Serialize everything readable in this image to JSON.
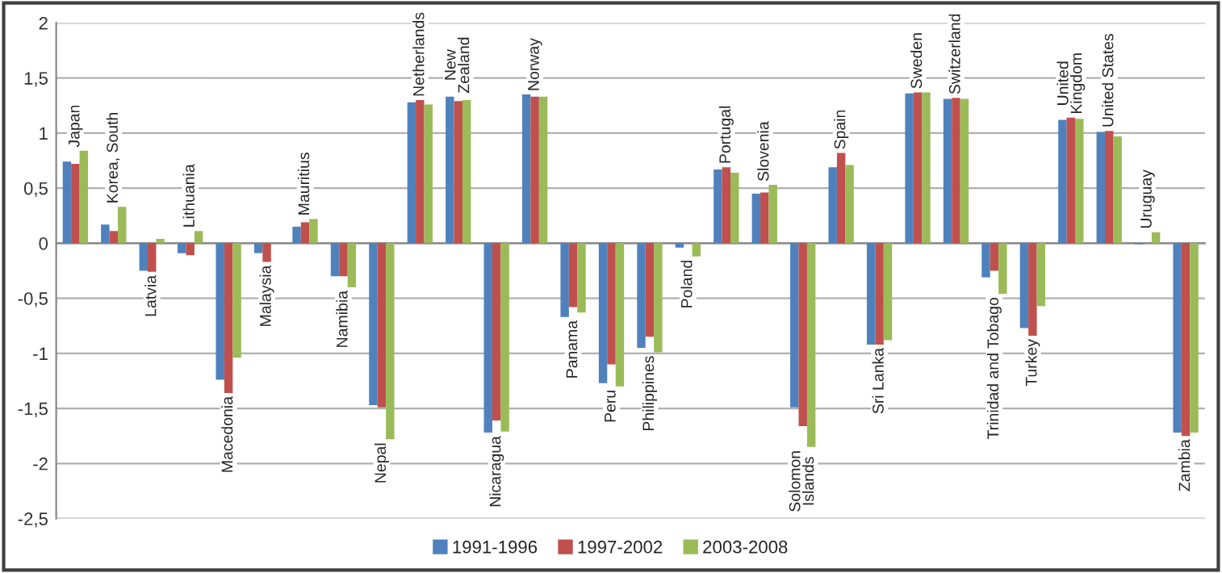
{
  "chart_data": {
    "type": "bar",
    "categories": [
      "Japan",
      "Korea, South",
      "Latvia",
      "Lithuania",
      "Macedonia",
      "Malaysia",
      "Mauritius",
      "Namibia",
      "Nepal",
      "Netherlands",
      "New\nZealand",
      "Nicaragua",
      "Norway",
      "Panama",
      "Peru",
      "Philippines",
      "Poland",
      "Portugal",
      "Slovenia",
      "Solomon\nIslands",
      "Spain",
      "Sri Lanka",
      "Sweden",
      "Switzerland",
      "Trinidad and Tobago",
      "Turkey",
      "United\nKingdom",
      "United States",
      "Uruguay",
      "Zambia"
    ],
    "series": [
      {
        "name": "1991-1996",
        "color": "#4f81bd",
        "values": [
          0.74,
          0.17,
          -0.25,
          -0.09,
          -1.24,
          -0.09,
          0.15,
          -0.3,
          -1.47,
          1.28,
          1.33,
          -1.72,
          1.35,
          -0.67,
          -1.27,
          -0.95,
          -0.04,
          0.67,
          0.45,
          -1.49,
          0.69,
          -0.92,
          1.36,
          1.31,
          -0.31,
          -0.77,
          1.12,
          1.01,
          -0.01,
          -1.72
        ]
      },
      {
        "name": "1997-2002",
        "color": "#c0504d",
        "values": [
          0.72,
          0.11,
          -0.26,
          -0.11,
          -1.36,
          -0.17,
          0.19,
          -0.3,
          -1.49,
          1.3,
          1.29,
          -1.61,
          1.33,
          -0.58,
          -1.1,
          -0.85,
          null,
          0.69,
          0.46,
          -1.66,
          0.82,
          -0.92,
          1.37,
          1.32,
          -0.25,
          -0.84,
          1.14,
          1.02,
          null,
          -1.75
        ]
      },
      {
        "name": "2003-2008",
        "color": "#9bbb59",
        "values": [
          0.84,
          0.33,
          0.04,
          0.11,
          -1.04,
          null,
          0.22,
          -0.4,
          -1.78,
          1.26,
          1.3,
          -1.71,
          1.33,
          -0.63,
          -1.3,
          -0.99,
          -0.12,
          0.64,
          0.53,
          -1.85,
          0.71,
          -0.88,
          1.37,
          1.31,
          -0.46,
          -0.57,
          1.13,
          0.97,
          0.1,
          -1.72
        ]
      }
    ],
    "ylim": [
      -2.5,
      2
    ],
    "yticks": [
      {
        "value": -2.5,
        "label": "-2,5"
      },
      -2,
      {
        "value": -1.5,
        "label": "-1,5"
      },
      -1,
      {
        "value": -0.5,
        "label": "-0,5"
      },
      0,
      {
        "value": 0.5,
        "label": "0,5"
      },
      1,
      {
        "value": 1.5,
        "label": "1,5"
      },
      2
    ],
    "grid": "y",
    "legend": "bottom"
  }
}
